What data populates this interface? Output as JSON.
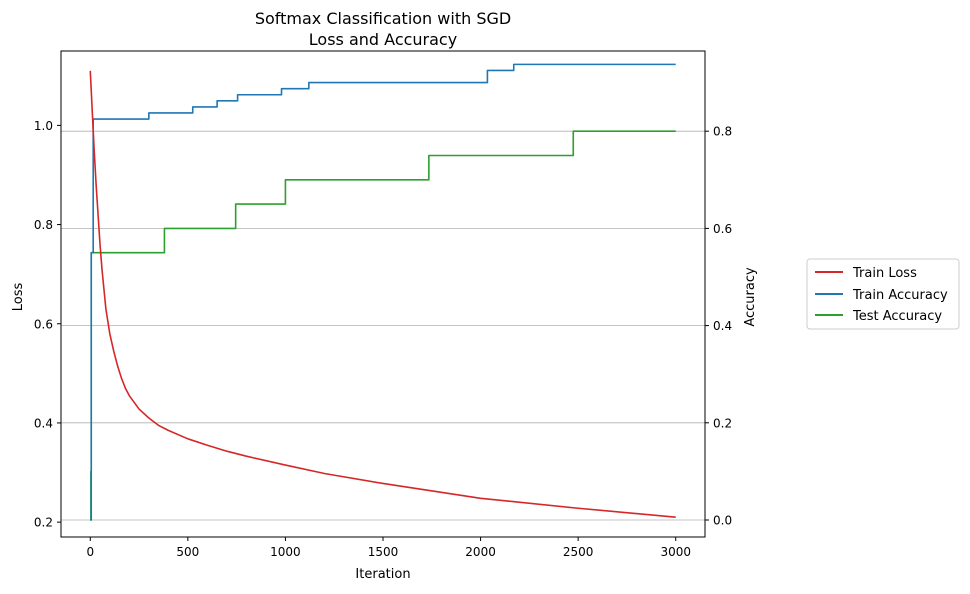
{
  "chart_data": {
    "type": "line",
    "title": [
      "Softmax Classification with SGD",
      "Loss and Accuracy"
    ],
    "xlabel": "Iteration",
    "ylabel_left": "Loss",
    "ylabel_right": "Accuracy",
    "xlim": [
      -150,
      3150
    ],
    "ylim_left": [
      0.17,
      1.15
    ],
    "ylim_right": [
      -0.035,
      0.965
    ],
    "x_ticks": [
      "0",
      "500",
      "1000",
      "1500",
      "2000",
      "2500",
      "3000"
    ],
    "y_ticks_left": [
      "0.2",
      "0.4",
      "0.6",
      "0.8",
      "1.0"
    ],
    "y_ticks_right": [
      "0.0",
      "0.2",
      "0.4",
      "0.6",
      "0.8"
    ],
    "grid": "horizontal lines at right-axis ticks",
    "legend_position": "outside-right",
    "series": [
      {
        "name": "Train Loss",
        "axis": "left",
        "color": "#d62728",
        "x": [
          0,
          10,
          20,
          30,
          40,
          50,
          60,
          70,
          80,
          100,
          120,
          140,
          160,
          180,
          200,
          250,
          300,
          350,
          400,
          500,
          600,
          700,
          800,
          1000,
          1200,
          1500,
          2000,
          2500,
          3000
        ],
        "values": [
          1.11,
          1.03,
          0.95,
          0.88,
          0.82,
          0.76,
          0.71,
          0.67,
          0.63,
          0.58,
          0.545,
          0.515,
          0.49,
          0.47,
          0.455,
          0.428,
          0.41,
          0.395,
          0.385,
          0.368,
          0.355,
          0.343,
          0.333,
          0.315,
          0.298,
          0.278,
          0.248,
          0.228,
          0.21
        ]
      },
      {
        "name": "Train Accuracy",
        "axis": "right",
        "color": "#1f77b4",
        "step": true,
        "x": [
          0,
          5,
          15,
          300,
          525,
          650,
          755,
          980,
          1120,
          2035,
          2170,
          3000
        ],
        "values": [
          0.0,
          0.55,
          0.825,
          0.8375,
          0.85,
          0.8625,
          0.875,
          0.8875,
          0.9,
          0.925,
          0.9375,
          0.9375
        ]
      },
      {
        "name": "Test Accuracy",
        "axis": "right",
        "color": "#2ca02c",
        "step": true,
        "x": [
          0,
          3,
          5,
          380,
          745,
          1000,
          1735,
          2475,
          3000
        ],
        "values": [
          0.0,
          0.1,
          0.55,
          0.6,
          0.65,
          0.7,
          0.75,
          0.8,
          0.8
        ]
      }
    ]
  }
}
